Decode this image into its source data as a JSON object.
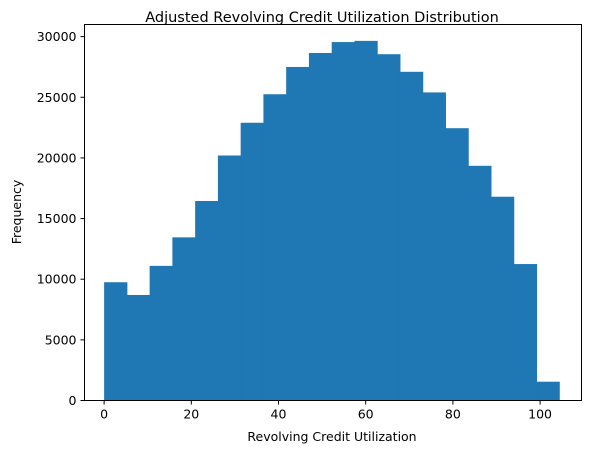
{
  "chart_data": {
    "type": "bar",
    "title": "Adjusted Revolving Credit Utilization Distribution",
    "xlabel": "Revolving Credit Utilization",
    "ylabel": "Frequency",
    "xlim": [
      -4.5,
      109.5
    ],
    "ylim": [
      0,
      31000
    ],
    "xticks": [
      0,
      20,
      40,
      60,
      80,
      100
    ],
    "yticks": [
      0,
      5000,
      10000,
      15000,
      20000,
      25000,
      30000
    ],
    "bins": [
      {
        "x0": 0.0,
        "x1": 5.22,
        "value": 9750
      },
      {
        "x0": 5.22,
        "x1": 10.44,
        "value": 8700
      },
      {
        "x0": 10.44,
        "x1": 15.66,
        "value": 11100
      },
      {
        "x0": 15.66,
        "x1": 20.88,
        "value": 13450
      },
      {
        "x0": 20.88,
        "x1": 26.1,
        "value": 16450
      },
      {
        "x0": 26.1,
        "x1": 31.32,
        "value": 20200
      },
      {
        "x0": 31.32,
        "x1": 36.54,
        "value": 22900
      },
      {
        "x0": 36.54,
        "x1": 41.76,
        "value": 25250
      },
      {
        "x0": 41.76,
        "x1": 46.98,
        "value": 27500
      },
      {
        "x0": 46.98,
        "x1": 52.2,
        "value": 28650
      },
      {
        "x0": 52.2,
        "x1": 57.42,
        "value": 29550
      },
      {
        "x0": 57.42,
        "x1": 62.64,
        "value": 29650
      },
      {
        "x0": 62.64,
        "x1": 67.86,
        "value": 28550
      },
      {
        "x0": 67.86,
        "x1": 73.08,
        "value": 27100
      },
      {
        "x0": 73.08,
        "x1": 78.3,
        "value": 25400
      },
      {
        "x0": 78.3,
        "x1": 83.52,
        "value": 22450
      },
      {
        "x0": 83.52,
        "x1": 88.74,
        "value": 19350
      },
      {
        "x0": 88.74,
        "x1": 93.96,
        "value": 16800
      },
      {
        "x0": 93.96,
        "x1": 99.18,
        "value": 11250
      },
      {
        "x0": 99.18,
        "x1": 104.4,
        "value": 1550
      }
    ],
    "bar_color": "#1f77b4",
    "grid": false,
    "legend": "none"
  }
}
